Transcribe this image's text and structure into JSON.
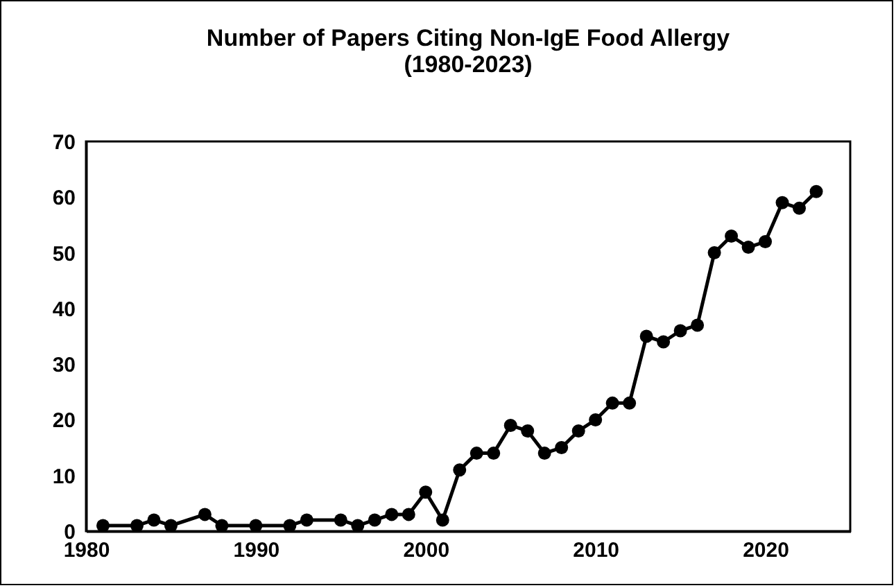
{
  "chart_data": {
    "type": "line",
    "title": [
      "Number of Papers Citing Non-IgE Food Allergy",
      "(1980-2023)"
    ],
    "x": [
      1981,
      1983,
      1984,
      1985,
      1987,
      1988,
      1990,
      1992,
      1993,
      1995,
      1996,
      1997,
      1998,
      1999,
      2000,
      2001,
      2002,
      2003,
      2004,
      2005,
      2006,
      2007,
      2008,
      2009,
      2010,
      2011,
      2012,
      2013,
      2014,
      2015,
      2016,
      2017,
      2018,
      2019,
      2020,
      2021,
      2022,
      2023
    ],
    "series": [
      {
        "color": "#000000",
        "values": [
          1,
          1,
          2,
          1,
          3,
          1,
          1,
          1,
          2,
          2,
          1,
          2,
          3,
          3,
          7,
          2,
          11,
          14,
          14,
          19,
          18,
          14,
          15,
          18,
          20,
          23,
          23,
          35,
          34,
          36,
          37,
          50,
          53,
          51,
          52,
          59,
          58,
          61
        ]
      }
    ],
    "xlim": [
      1980,
      2025
    ],
    "xticks": [
      1980,
      1990,
      2000,
      2010,
      2020
    ],
    "ylim": [
      0,
      70
    ],
    "yticks": [
      0,
      10,
      20,
      30,
      40,
      50,
      60,
      70
    ],
    "grid": false,
    "marker": "circle",
    "line_style": "solid"
  }
}
